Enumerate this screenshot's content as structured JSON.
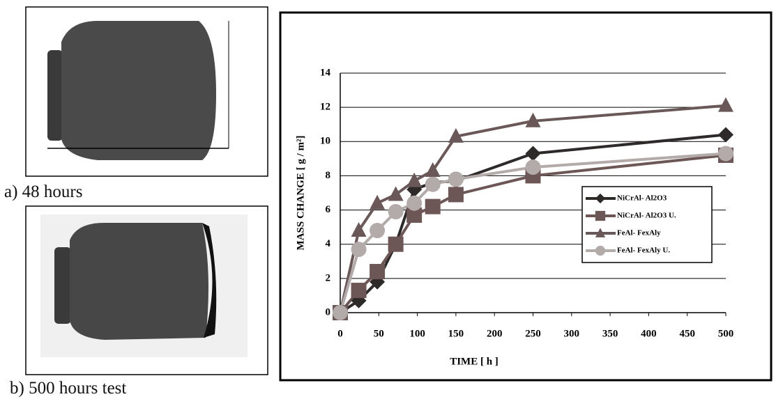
{
  "figures": [
    {
      "caption": "a)  48 hours"
    },
    {
      "caption": "b)  500 hours test"
    }
  ],
  "chart_data": {
    "type": "line",
    "xlabel": "TIME [ h ]",
    "ylabel": "MASS CHANGE [ g / m²]",
    "x": [
      0,
      24,
      48,
      72,
      96,
      120,
      150,
      250,
      500
    ],
    "xlim": [
      0,
      500
    ],
    "xticks": [
      0,
      50,
      100,
      150,
      200,
      250,
      300,
      350,
      400,
      450,
      500
    ],
    "ylim": [
      0,
      14
    ],
    "yticks": [
      0,
      2,
      4,
      6,
      8,
      10,
      12,
      14
    ],
    "grid": true,
    "series": [
      {
        "name": "NiCrAl- Al2O3",
        "color": "#2e2a2a",
        "marker": "diamond",
        "values": [
          0,
          0.7,
          1.8,
          4.0,
          7.2,
          7.6,
          7.7,
          9.3,
          10.4
        ]
      },
      {
        "name": "NiCrAl- Al2O3 U.",
        "color": "#6d5656",
        "marker": "square",
        "values": [
          0,
          1.3,
          2.4,
          4.0,
          5.7,
          6.2,
          6.9,
          8.0,
          9.2
        ]
      },
      {
        "name": "FeAl- FexAly",
        "color": "#6a5858",
        "marker": "triangle",
        "values": [
          0,
          4.8,
          6.4,
          6.9,
          7.7,
          8.3,
          10.3,
          11.2,
          12.1
        ]
      },
      {
        "name": "FeAl- FexAly  U.",
        "color": "#b3aaaa",
        "marker": "circle",
        "values": [
          0,
          3.7,
          4.8,
          5.9,
          6.4,
          7.5,
          7.8,
          8.5,
          9.3
        ]
      }
    ]
  }
}
